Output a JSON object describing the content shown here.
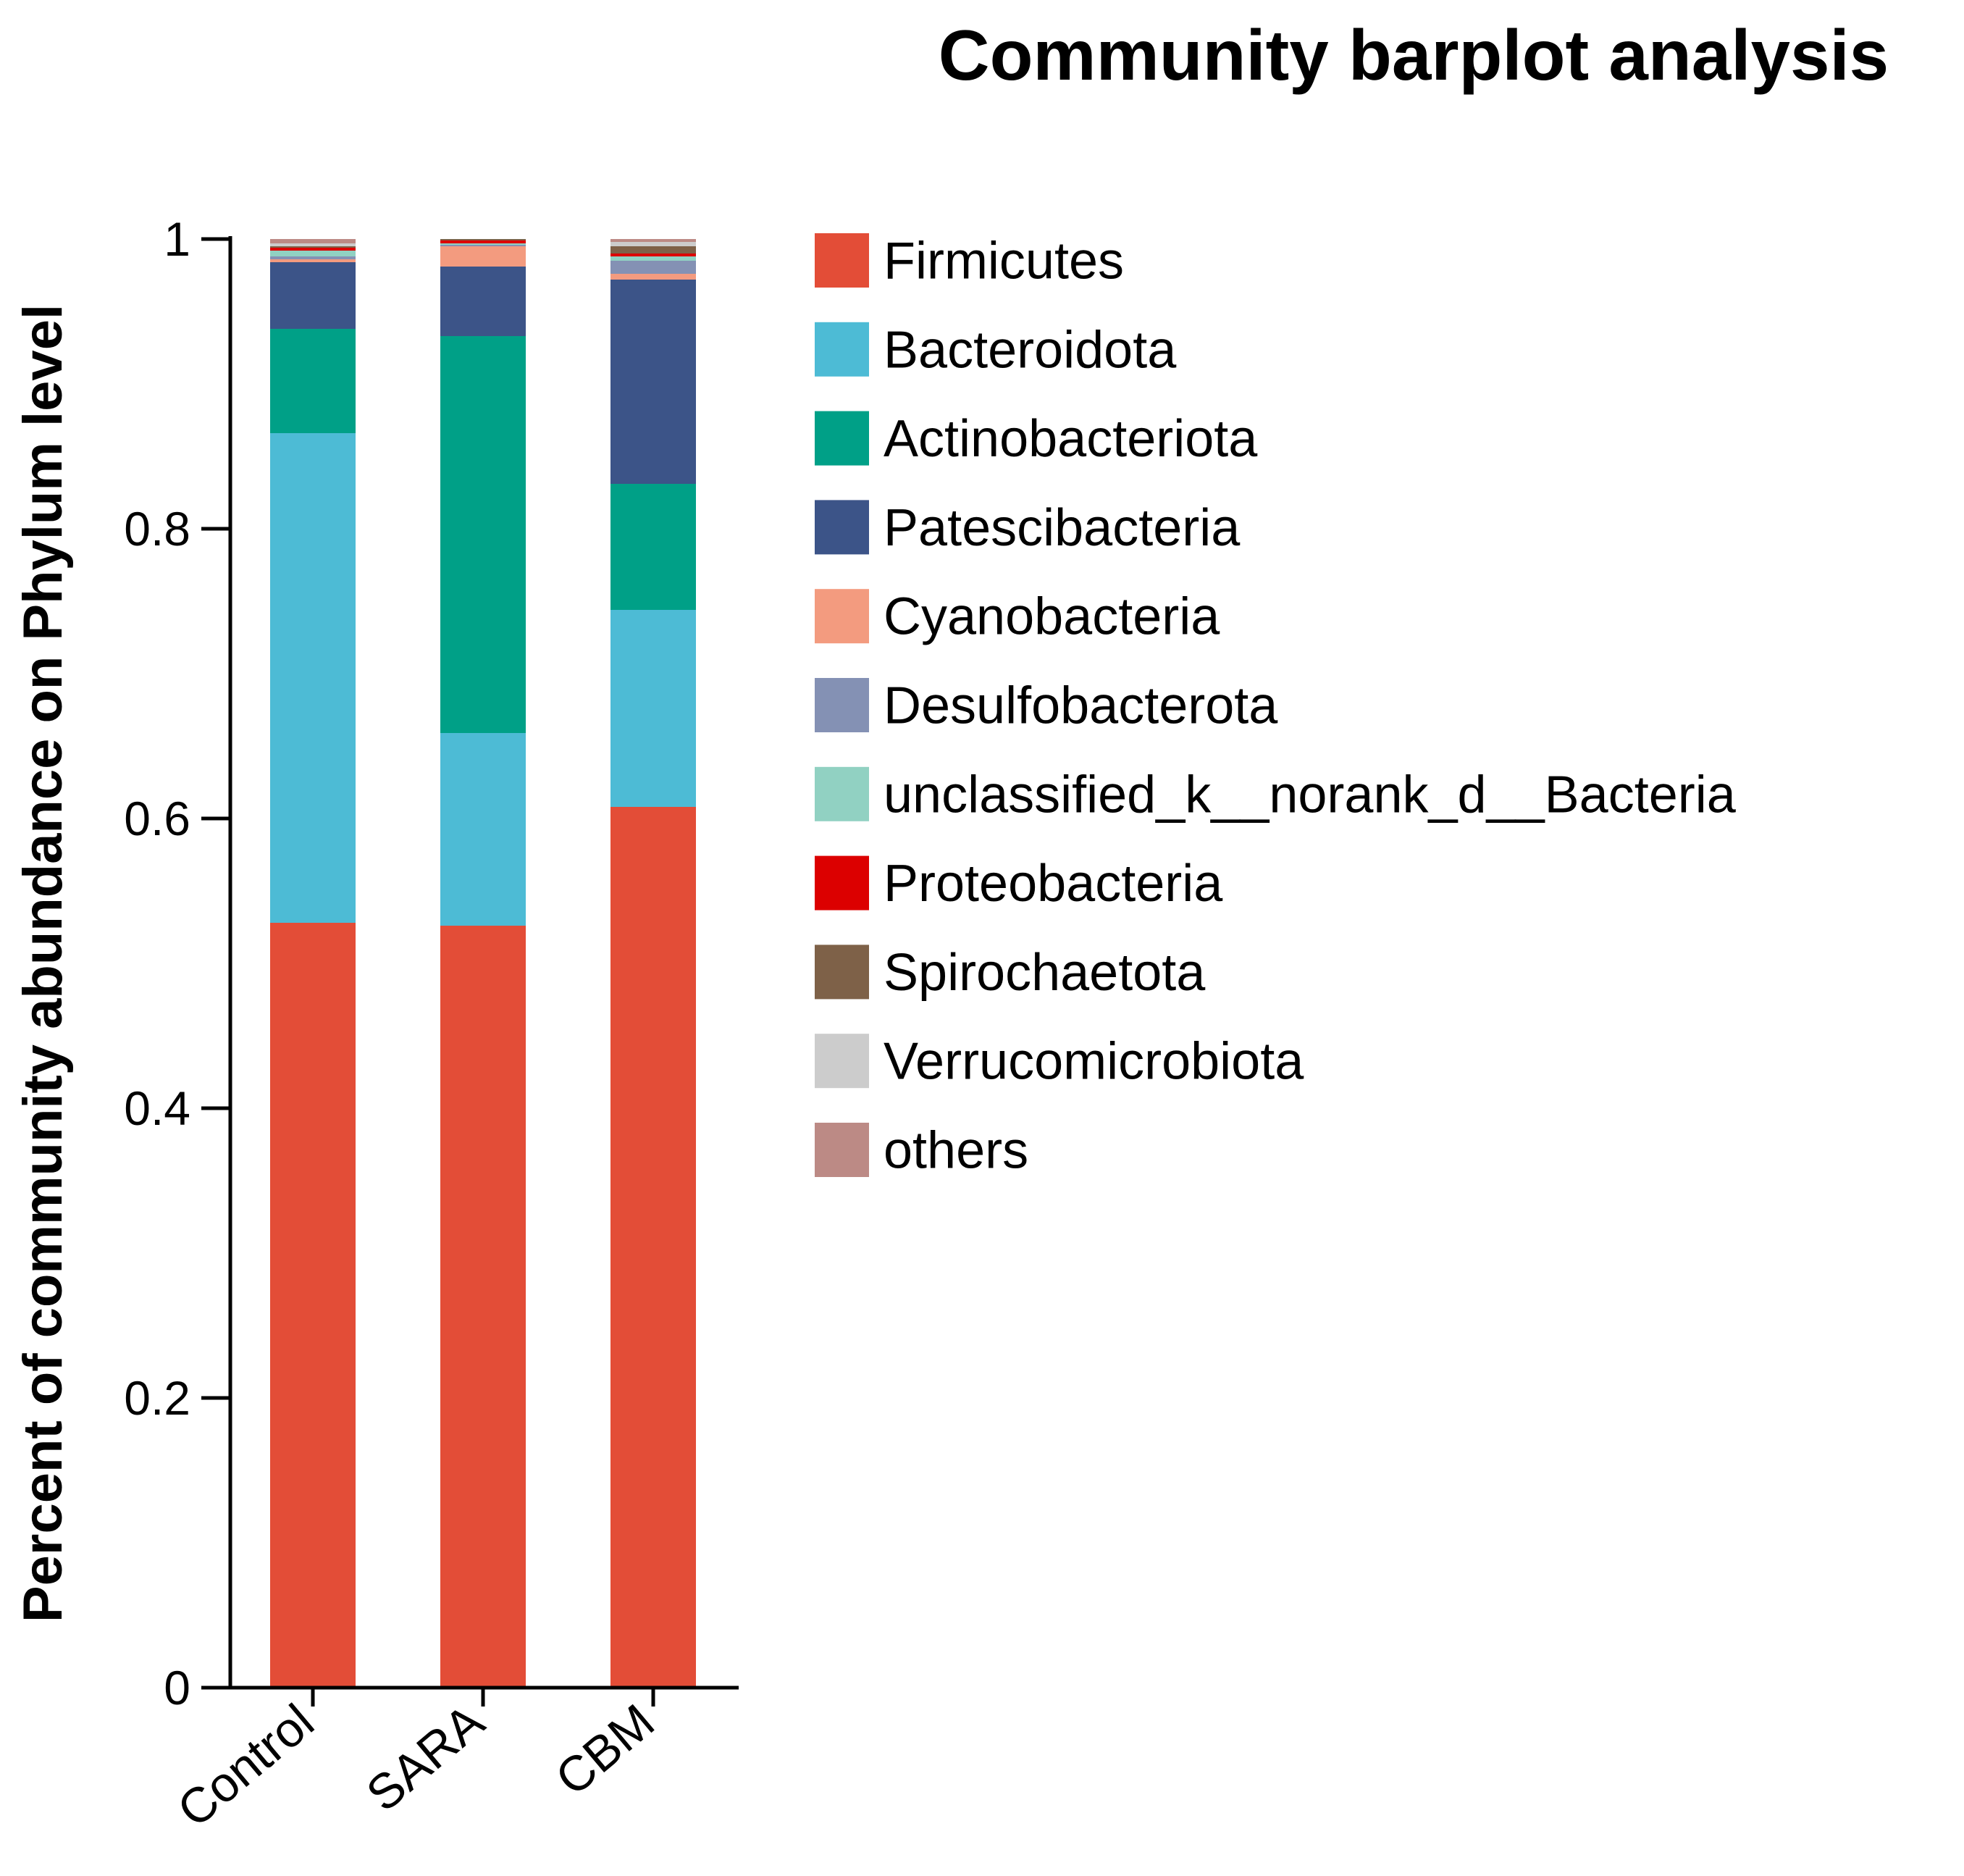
{
  "chart_data": {
    "type": "bar",
    "stacked": true,
    "title": "Community barplot analysis",
    "xlabel": "",
    "ylabel": "Percent of community abundance on Phylum level",
    "ylim": [
      0,
      1
    ],
    "yticks": [
      0,
      0.2,
      0.4,
      0.6,
      0.8,
      1
    ],
    "ytick_labels": [
      "0",
      "0.2",
      "0.4",
      "0.6",
      "0.8",
      "1"
    ],
    "categories": [
      "Control",
      "SARA",
      "CBM"
    ],
    "legend_position": "right",
    "series": [
      {
        "name": "Firmicutes",
        "color": "#E34D37",
        "values": [
          0.528,
          0.526,
          0.608
        ]
      },
      {
        "name": "Bacteroidota",
        "color": "#4DBBD5",
        "values": [
          0.338,
          0.133,
          0.136
        ]
      },
      {
        "name": "Actinobacteriota",
        "color": "#00A087",
        "values": [
          0.072,
          0.274,
          0.087
        ]
      },
      {
        "name": "Patescibacteria",
        "color": "#3C5488",
        "values": [
          0.046,
          0.048,
          0.141
        ]
      },
      {
        "name": "Cyanobacteria",
        "color": "#F39B7F",
        "values": [
          0.002,
          0.014,
          0.004
        ]
      },
      {
        "name": "Desulfobacterota",
        "color": "#8491B4",
        "values": [
          0.002,
          0.001,
          0.009
        ]
      },
      {
        "name": "unclassified_k__norank_d__Bacteria",
        "color": "#91D1C2",
        "values": [
          0.004,
          0.001,
          0.003
        ]
      },
      {
        "name": "Proteobacteria",
        "color": "#DC0000",
        "values": [
          0.002,
          0.002,
          0.002
        ]
      },
      {
        "name": "Spirochaetota",
        "color": "#7E6148",
        "values": [
          0.001,
          0.001,
          0.005
        ]
      },
      {
        "name": "Verrucomicrobiota",
        "color": "#CCCCCC",
        "values": [
          0.002,
          0.0,
          0.003
        ]
      },
      {
        "name": "others",
        "color": "#BC8A85",
        "values": [
          0.003,
          0.0,
          0.002
        ]
      }
    ]
  }
}
